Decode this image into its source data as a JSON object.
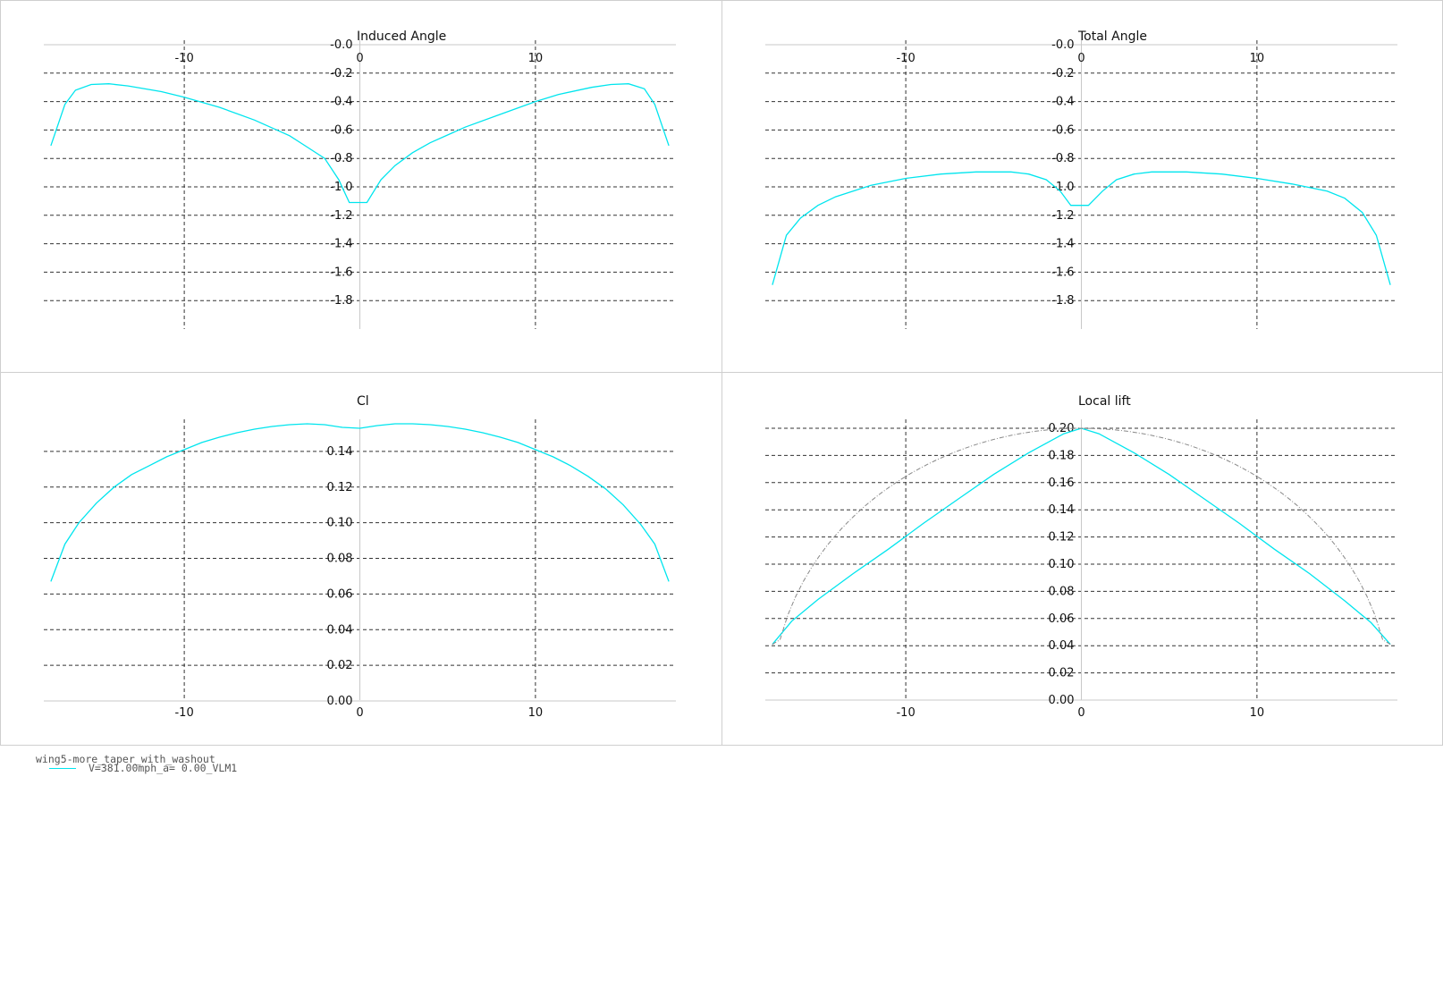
{
  "chart_data": [
    {
      "type": "line",
      "title": "Induced Angle",
      "xlim": [
        -18,
        18
      ],
      "ylim": [
        -2.0,
        0.0
      ],
      "y_invert": true,
      "x_ticks": [
        -10,
        0,
        10
      ],
      "x_tick_labels": [
        "-10",
        "0",
        "10"
      ],
      "x_axis_position": "top",
      "y_ticks": [
        0.0,
        -0.2,
        -0.4,
        -0.6,
        -0.8,
        -1.0,
        -1.2,
        -1.4,
        -1.6,
        -1.8
      ],
      "y_tick_labels": [
        "-0.0",
        "-0.2",
        "-0.4",
        "-0.6",
        "-0.8",
        "-1.0",
        "-1.2",
        "-1.4",
        "-1.6",
        "-1.8"
      ],
      "grid": true,
      "series": [
        {
          "color": "#00e5ee",
          "x": [
            -17.6,
            -16.8,
            -16.2,
            -15.3,
            -14.3,
            -13.2,
            -11.3,
            -10.0,
            -8.0,
            -6.0,
            -4.0,
            -3.0,
            -2.0,
            -1.2,
            -0.6,
            0.4,
            1.2,
            2.0,
            3.0,
            4.0,
            6.0,
            8.0,
            10.0,
            11.3,
            13.2,
            14.3,
            15.3,
            16.2,
            16.8,
            17.6
          ],
          "y": [
            -0.71,
            -0.42,
            -0.32,
            -0.28,
            -0.275,
            -0.29,
            -0.33,
            -0.37,
            -0.44,
            -0.53,
            -0.64,
            -0.72,
            -0.8,
            -0.95,
            -1.11,
            -1.11,
            -0.95,
            -0.85,
            -0.76,
            -0.69,
            -0.58,
            -0.49,
            -0.4,
            -0.35,
            -0.3,
            -0.28,
            -0.275,
            -0.31,
            -0.42,
            -0.71
          ]
        }
      ]
    },
    {
      "type": "line",
      "title": "Total Angle",
      "xlim": [
        -18,
        18
      ],
      "ylim": [
        -2.0,
        0.0
      ],
      "y_invert": true,
      "x_ticks": [
        -10,
        0,
        10
      ],
      "x_tick_labels": [
        "-10",
        "0",
        "10"
      ],
      "x_axis_position": "top",
      "y_ticks": [
        0.0,
        -0.2,
        -0.4,
        -0.6,
        -0.8,
        -1.0,
        -1.2,
        -1.4,
        -1.6,
        -1.8
      ],
      "y_tick_labels": [
        "-0.0",
        "-0.2",
        "-0.4",
        "-0.6",
        "-0.8",
        "-1.0",
        "-1.2",
        "-1.4",
        "-1.6",
        "-1.8"
      ],
      "grid": true,
      "series": [
        {
          "color": "#00e5ee",
          "x": [
            -17.6,
            -16.8,
            -16.0,
            -15.0,
            -14.0,
            -12.0,
            -10.0,
            -8.0,
            -6.0,
            -4.0,
            -3.0,
            -2.0,
            -1.2,
            -0.6,
            0.4,
            1.2,
            2.0,
            3.0,
            4.0,
            6.0,
            8.0,
            10.0,
            12.0,
            14.0,
            15.0,
            16.0,
            16.8,
            17.6
          ],
          "y": [
            -1.69,
            -1.34,
            -1.22,
            -1.13,
            -1.07,
            -0.99,
            -0.94,
            -0.91,
            -0.895,
            -0.895,
            -0.91,
            -0.95,
            -1.03,
            -1.13,
            -1.13,
            -1.03,
            -0.95,
            -0.91,
            -0.895,
            -0.895,
            -0.91,
            -0.94,
            -0.98,
            -1.03,
            -1.08,
            -1.18,
            -1.34,
            -1.69
          ]
        }
      ]
    },
    {
      "type": "line",
      "title": "Cl",
      "xlim": [
        -18,
        18
      ],
      "ylim": [
        0.0,
        0.155
      ],
      "x_ticks": [
        -10,
        0,
        10
      ],
      "x_tick_labels": [
        "-10",
        "0",
        "10"
      ],
      "x_axis_position": "bottom",
      "y_ticks": [
        0.0,
        0.02,
        0.04,
        0.06,
        0.08,
        0.1,
        0.12,
        0.14
      ],
      "y_tick_labels": [
        "0.00",
        "0.02",
        "0.04",
        "0.06",
        "0.08",
        "0.10",
        "0.12",
        "0.14"
      ],
      "grid": true,
      "series": [
        {
          "color": "#00e5ee",
          "x": [
            -17.6,
            -16.8,
            -16.0,
            -15.0,
            -14.0,
            -13.0,
            -12.0,
            -11.0,
            -10.0,
            -9.0,
            -8.0,
            -7.0,
            -6.0,
            -5.0,
            -4.0,
            -3.0,
            -2.0,
            -1.0,
            0.0,
            1.0,
            2.0,
            3.0,
            4.0,
            5.0,
            6.0,
            7.0,
            8.0,
            9.0,
            10.0,
            11.0,
            12.0,
            13.0,
            14.0,
            15.0,
            16.0,
            16.8,
            17.6
          ],
          "y": [
            0.067,
            0.088,
            0.1,
            0.111,
            0.12,
            0.127,
            0.132,
            0.137,
            0.141,
            0.145,
            0.148,
            0.1505,
            0.1525,
            0.154,
            0.155,
            0.1555,
            0.155,
            0.1535,
            0.153,
            0.1545,
            0.1555,
            0.1555,
            0.155,
            0.154,
            0.1525,
            0.1505,
            0.148,
            0.145,
            0.141,
            0.137,
            0.132,
            0.126,
            0.119,
            0.11,
            0.099,
            0.088,
            0.067
          ]
        }
      ]
    },
    {
      "type": "line",
      "title": "Local lift",
      "xlim": [
        -18,
        18
      ],
      "ylim": [
        0.0,
        0.2
      ],
      "x_ticks": [
        -10,
        0,
        10
      ],
      "x_tick_labels": [
        "-10",
        "0",
        "10"
      ],
      "x_axis_position": "bottom",
      "y_ticks": [
        0.0,
        0.02,
        0.04,
        0.06,
        0.08,
        0.1,
        0.12,
        0.14,
        0.16,
        0.18,
        0.2
      ],
      "y_tick_labels": [
        "0.00",
        "0.02",
        "0.04",
        "0.06",
        "0.08",
        "0.10",
        "0.12",
        "0.14",
        "0.16",
        "0.18",
        "0.20"
      ],
      "grid": true,
      "series": [
        {
          "color": "#00e5ee",
          "x": [
            -17.6,
            -16.5,
            -15.0,
            -13.0,
            -11.0,
            -9.0,
            -7.0,
            -5.0,
            -3.0,
            -1.0,
            0.0,
            1.0,
            3.0,
            5.0,
            7.0,
            9.0,
            11.0,
            13.0,
            15.0,
            16.5,
            17.6
          ],
          "y": [
            0.041,
            0.058,
            0.074,
            0.093,
            0.111,
            0.13,
            0.148,
            0.166,
            0.182,
            0.196,
            0.2,
            0.196,
            0.182,
            0.166,
            0.148,
            0.13,
            0.111,
            0.093,
            0.073,
            0.057,
            0.041
          ]
        },
        {
          "color": "#888888",
          "dashed": true,
          "elliptic": true,
          "peak": 0.2,
          "half_span": 17.6,
          "end_value": 0.041
        }
      ]
    }
  ],
  "legend": {
    "title": "wing5-more_taper_with_washout",
    "entries": [
      {
        "label": "V=381.00mph_a= 0.00_VLM1",
        "color": "#00e5ee"
      }
    ]
  }
}
